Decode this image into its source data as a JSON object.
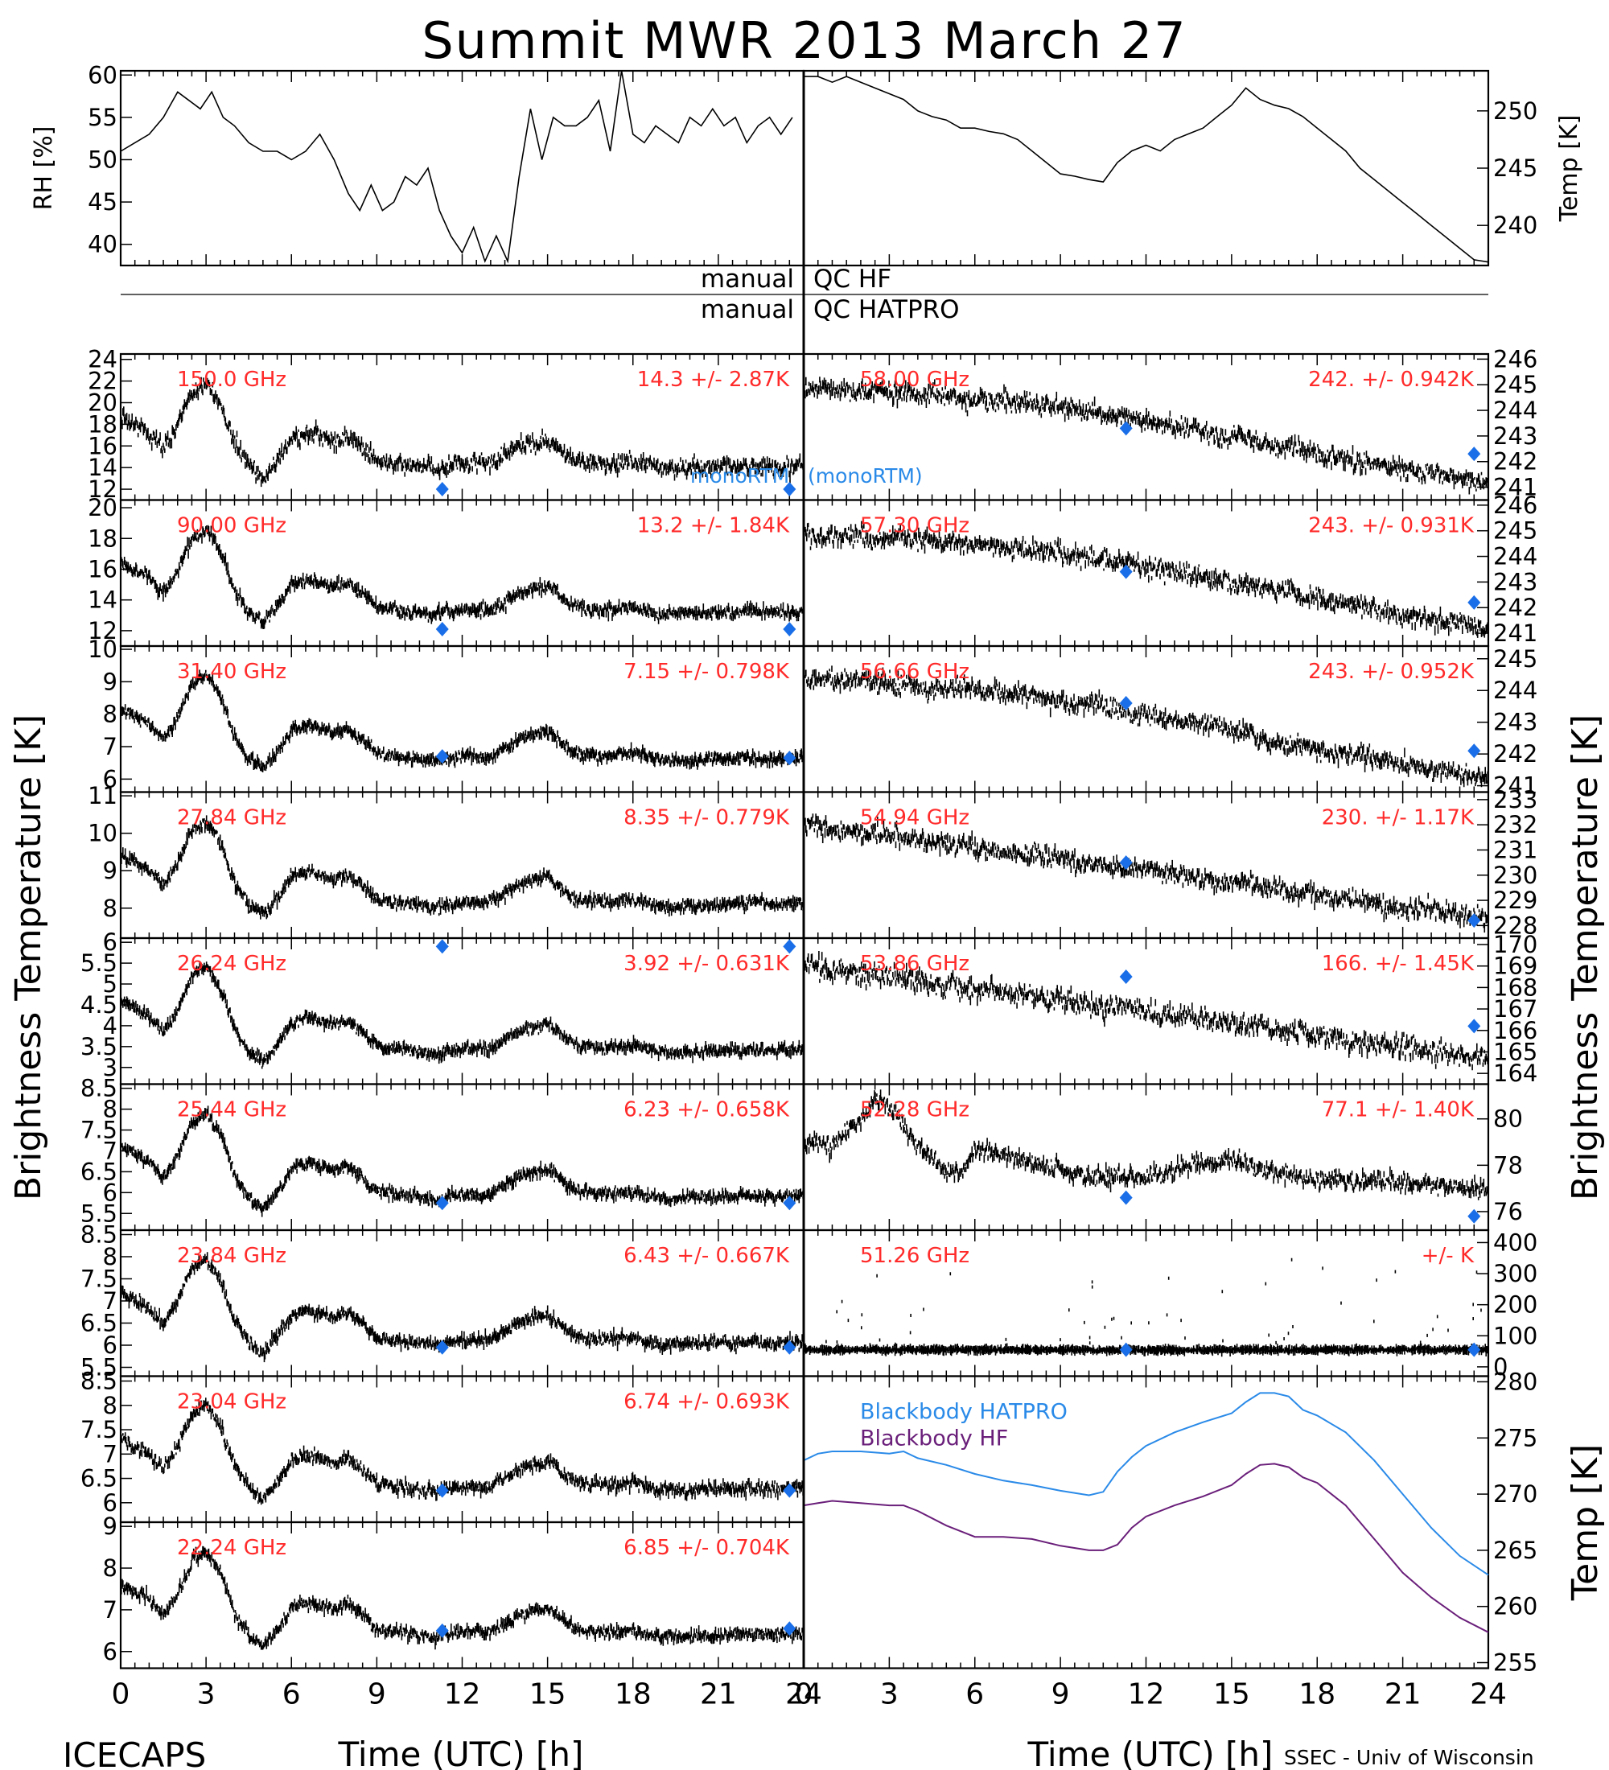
{
  "figure": {
    "title": "Summit MWR 2013 March 27",
    "left_ylabel": "Brightness Temperature [K]",
    "right_ylabel": "Brightness Temperature [K]",
    "xlabel": "Time (UTC) [h]",
    "footer_left": "ICECAPS",
    "footer_right": "SSEC - Univ of Wisconsin",
    "qc_prefix": "manual",
    "qc_hf": "QC HF",
    "qc_hatpro": "QC HATPRO",
    "monortm_left": "monoRTM",
    "monortm_right": "(monoRTM)",
    "colors": {
      "label_red": "#ff2a2a",
      "diamond_blue": "#1a6fe8",
      "hatpro_blue": "#2a8ae8",
      "hf_purple": "#6a1f7a",
      "axis": "#000000"
    }
  },
  "chart_data": [
    {
      "id": "rh",
      "type": "line",
      "ylabel": "RH [%]",
      "xlim": [
        0,
        24
      ],
      "ylim": [
        37.5,
        60.5
      ],
      "yticks": [
        40,
        45,
        50,
        55,
        60
      ],
      "x": [
        0,
        0.5,
        1,
        1.5,
        2,
        2.4,
        2.8,
        3.2,
        3.6,
        4,
        4.5,
        5,
        5.5,
        6,
        6.5,
        7,
        7.5,
        8,
        8.4,
        8.8,
        9.2,
        9.6,
        10,
        10.4,
        10.8,
        11.2,
        11.6,
        12,
        12.4,
        12.8,
        13.2,
        13.6,
        14,
        14.4,
        14.8,
        15.2,
        15.6,
        16,
        16.4,
        16.8,
        17.2,
        17.6,
        18,
        18.4,
        18.8,
        19.2,
        19.6,
        20,
        20.4,
        20.8,
        21.2,
        21.6,
        22,
        22.4,
        22.8,
        23.2,
        23.6
      ],
      "y": [
        51,
        52,
        53,
        55,
        58,
        57,
        56,
        58,
        55,
        54,
        52,
        51,
        51,
        50,
        51,
        53,
        50,
        46,
        44,
        47,
        44,
        45,
        48,
        47,
        49,
        44,
        41,
        39,
        42,
        38,
        41,
        38,
        48,
        56,
        50,
        55,
        54,
        54,
        55,
        57,
        51,
        61,
        53,
        52,
        54,
        53,
        52,
        55,
        54,
        56,
        54,
        55,
        52,
        54,
        55,
        53,
        55
      ]
    },
    {
      "id": "temp",
      "type": "line",
      "ylabel": "Temp [K]",
      "xlim": [
        0,
        24
      ],
      "ylim": [
        236.5,
        253.5
      ],
      "yticks": [
        240,
        245,
        250
      ],
      "x": [
        0,
        0.5,
        1,
        1.5,
        2,
        2.5,
        3,
        3.5,
        4,
        4.5,
        5,
        5.5,
        6,
        6.5,
        7,
        7.5,
        8,
        8.5,
        9,
        9.5,
        10,
        10.5,
        11,
        11.5,
        12,
        12.5,
        13,
        13.5,
        14,
        14.5,
        15,
        15.5,
        16,
        16.5,
        17,
        17.5,
        18,
        18.5,
        19,
        19.5,
        20,
        20.5,
        21,
        21.5,
        22,
        22.5,
        23,
        23.5,
        24
      ],
      "y": [
        253,
        253,
        252.5,
        253,
        252.5,
        252,
        251.5,
        251,
        250,
        249.5,
        249.2,
        248.5,
        248.5,
        248.2,
        248,
        247.5,
        246.5,
        245.5,
        244.5,
        244.3,
        244,
        243.8,
        245.5,
        246.5,
        247,
        246.5,
        247.5,
        248,
        248.5,
        249.5,
        250.5,
        252,
        251,
        250.5,
        250.2,
        249.5,
        248.5,
        247.5,
        246.5,
        245,
        244,
        243,
        242,
        241,
        240,
        239,
        238,
        237,
        236.8
      ]
    },
    {
      "id": "150",
      "type": "scatter",
      "freq": "150.0 GHz",
      "mean": "14.3",
      "sd": "2.87K",
      "ylim": [
        11,
        24.5
      ],
      "yticks": [
        12,
        14,
        16,
        18,
        20,
        22,
        24
      ],
      "base": "lf",
      "scale": 1.0,
      "noise": 0.7,
      "model": [
        [
          11.3,
          12
        ],
        [
          23.5,
          12
        ]
      ]
    },
    {
      "id": "90",
      "type": "scatter",
      "freq": "90.00 GHz",
      "mean": "13.2",
      "sd": "1.84K",
      "ylim": [
        11,
        20.5
      ],
      "yticks": [
        12,
        14,
        16,
        18,
        20
      ],
      "base": "lf",
      "scale": 0.68,
      "noise": 0.35,
      "model": [
        [
          11.3,
          12.1
        ],
        [
          23.5,
          12.1
        ]
      ]
    },
    {
      "id": "31",
      "type": "scatter",
      "freq": "31.40 GHz",
      "mean": "7.15",
      "sd": "0.798K",
      "ylim": [
        5.6,
        10.1
      ],
      "yticks": [
        6,
        7,
        8,
        9,
        10
      ],
      "base": "lf",
      "scale": 0.32,
      "noise": 0.15,
      "model": [
        [
          11.3,
          6.7
        ],
        [
          23.5,
          6.65
        ]
      ]
    },
    {
      "id": "27",
      "type": "scatter",
      "freq": "27.84 GHz",
      "mean": "8.35",
      "sd": "0.779K",
      "ylim": [
        7.2,
        11.1
      ],
      "yticks": [
        8,
        9,
        10,
        11
      ],
      "base": "lf",
      "scale": 0.31,
      "noise": 0.14,
      "model": []
    },
    {
      "id": "26",
      "type": "scatter",
      "freq": "26.24 GHz",
      "mean": "3.92",
      "sd": "0.631K",
      "ylim": [
        2.6,
        6.1
      ],
      "yticks": [
        3.0,
        3.5,
        4.0,
        4.5,
        5.0,
        5.5,
        6.0
      ],
      "base": "lf",
      "scale": 0.25,
      "noise": 0.12,
      "model": [
        [
          11.3,
          5.9
        ],
        [
          23.5,
          5.9
        ]
      ]
    },
    {
      "id": "25",
      "type": "scatter",
      "freq": "25.44 GHz",
      "mean": "6.23",
      "sd": "0.658K",
      "ylim": [
        5.1,
        8.6
      ],
      "yticks": [
        5.5,
        6.0,
        6.5,
        7.0,
        7.5,
        8.0,
        8.5
      ],
      "base": "lf",
      "scale": 0.26,
      "noise": 0.12,
      "model": [
        [
          11.3,
          5.75
        ],
        [
          23.5,
          5.75
        ]
      ]
    },
    {
      "id": "23",
      "type": "scatter",
      "freq": "23.84 GHz",
      "mean": "6.43",
      "sd": "0.667K",
      "ylim": [
        5.3,
        8.6
      ],
      "yticks": [
        5.5,
        6.0,
        6.5,
        7.0,
        7.5,
        8.0,
        8.5
      ],
      "base": "lf",
      "scale": 0.26,
      "noise": 0.12,
      "model": [
        [
          11.3,
          5.95
        ],
        [
          23.5,
          5.95
        ]
      ]
    },
    {
      "id": "23b",
      "type": "scatter",
      "freq": "23.04 GHz",
      "mean": "6.74",
      "sd": "0.693K",
      "ylim": [
        5.6,
        8.6
      ],
      "yticks": [
        6.0,
        6.5,
        7.0,
        7.5,
        8.0,
        8.5
      ],
      "base": "lf",
      "scale": 0.27,
      "noise": 0.12,
      "model": [
        [
          11.3,
          6.25
        ],
        [
          23.5,
          6.25
        ]
      ]
    },
    {
      "id": "22",
      "type": "scatter",
      "freq": "22.24 GHz",
      "mean": "6.85",
      "sd": "0.704K",
      "ylim": [
        5.6,
        9.1
      ],
      "yticks": [
        6,
        7,
        8,
        9
      ],
      "base": "lf",
      "scale": 0.28,
      "noise": 0.13,
      "model": [
        [
          11.3,
          6.5
        ],
        [
          23.5,
          6.55
        ]
      ]
    },
    {
      "id": "58",
      "type": "scatter",
      "freq": "58.00 GHz",
      "mean": "242.",
      "sd": "0.942K",
      "ylim": [
        240.5,
        246.2
      ],
      "yticks": [
        241,
        242,
        243,
        244,
        245,
        246
      ],
      "base": "oxy",
      "start": 245,
      "end": 241.6,
      "noise": 0.35,
      "model": [
        [
          11.3,
          243.3
        ],
        [
          23.5,
          242.3
        ]
      ]
    },
    {
      "id": "57",
      "type": "scatter",
      "freq": "57.30 GHz",
      "mean": "243.",
      "sd": "0.931K",
      "ylim": [
        240.5,
        246.2
      ],
      "yticks": [
        241,
        242,
        243,
        244,
        245,
        246
      ],
      "base": "oxy",
      "start": 245,
      "end": 241.6,
      "noise": 0.35,
      "model": [
        [
          11.3,
          243.4
        ],
        [
          23.5,
          242.2
        ]
      ]
    },
    {
      "id": "56",
      "type": "scatter",
      "freq": "56.66 GHz",
      "mean": "243.",
      "sd": "0.952K",
      "ylim": [
        240.8,
        245.4
      ],
      "yticks": [
        241,
        242,
        243,
        244,
        245
      ],
      "base": "oxy",
      "start": 244.5,
      "end": 241.5,
      "noise": 0.3,
      "model": [
        [
          11.3,
          243.6
        ],
        [
          23.5,
          242.1
        ]
      ]
    },
    {
      "id": "54",
      "type": "scatter",
      "freq": "54.94 GHz",
      "mean": "230.",
      "sd": "1.17K",
      "ylim": [
        227.5,
        233.3
      ],
      "yticks": [
        228,
        229,
        230,
        231,
        232,
        233
      ],
      "base": "trend",
      "start": 232,
      "end": 228.3,
      "noise": 0.35,
      "model": [
        [
          11.3,
          230.5
        ],
        [
          23.5,
          228.2
        ]
      ]
    },
    {
      "id": "53",
      "type": "scatter",
      "freq": "53.86 GHz",
      "mean": "166.",
      "sd": "1.45K",
      "ylim": [
        163.5,
        170.3
      ],
      "yticks": [
        164,
        165,
        166,
        167,
        168,
        169,
        170
      ],
      "base": "trend",
      "start": 169,
      "end": 164.7,
      "noise": 0.45,
      "model": [
        [
          11.3,
          168.5
        ],
        [
          23.5,
          166.2
        ]
      ]
    },
    {
      "id": "52",
      "type": "scatter",
      "freq": "52.28 GHz",
      "mean": "77.1",
      "sd": "1.40K",
      "ylim": [
        75.2,
        81.5
      ],
      "yticks": [
        76,
        78,
        80
      ],
      "base": "lf52",
      "noise": 0.35,
      "model": [
        [
          11.3,
          76.6
        ],
        [
          23.5,
          75.8
        ]
      ]
    },
    {
      "id": "51",
      "type": "scatter",
      "freq": "51.26 GHz",
      "mean": "",
      "sd": "K",
      "ylim": [
        -30,
        440
      ],
      "yticks": [
        0,
        100,
        200,
        300,
        400
      ],
      "base": "flat",
      "level": 55,
      "noise": 5,
      "model": [
        [
          11.3,
          55
        ],
        [
          23.5,
          55
        ]
      ]
    },
    {
      "id": "bb",
      "type": "line",
      "ylabel": "Temp [K]",
      "ylim": [
        254.5,
        280.5
      ],
      "yticks": [
        255,
        260,
        265,
        270,
        275,
        280
      ],
      "series": [
        {
          "name": "Blackbody HATPRO",
          "color": "#2a8ae8",
          "x": [
            0,
            0.5,
            1,
            2,
            3,
            3.5,
            4,
            5,
            6,
            7,
            8,
            9,
            10,
            10.5,
            11,
            11.5,
            12,
            13,
            14,
            15,
            15.5,
            16,
            16.5,
            17,
            17.5,
            18,
            19,
            20,
            21,
            22,
            23,
            24
          ],
          "y": [
            273,
            273.6,
            273.8,
            273.8,
            273.6,
            273.8,
            273.2,
            272.6,
            271.8,
            271.2,
            270.8,
            270.3,
            269.9,
            270.2,
            272,
            273.3,
            274.3,
            275.5,
            276.4,
            277.2,
            278.2,
            279,
            279,
            278.7,
            277.5,
            277,
            275.5,
            273,
            270,
            267,
            264.5,
            262.8
          ]
        },
        {
          "name": "Blackbody HF",
          "color": "#6a1f7a",
          "x": [
            0,
            0.5,
            1,
            2,
            3,
            3.5,
            4,
            5,
            6,
            7,
            8,
            9,
            10,
            10.5,
            11,
            11.5,
            12,
            13,
            14,
            15,
            15.5,
            16,
            16.5,
            17,
            17.5,
            18,
            19,
            20,
            21,
            22,
            23,
            24
          ],
          "y": [
            269,
            269.2,
            269.4,
            269.2,
            269,
            269,
            268.5,
            267.2,
            266.2,
            266.2,
            266,
            265.4,
            265,
            265,
            265.5,
            267,
            268,
            269,
            269.8,
            270.8,
            271.8,
            272.6,
            272.7,
            272.4,
            271.5,
            271,
            269,
            266,
            263,
            260.8,
            259,
            257.7
          ]
        }
      ]
    }
  ]
}
